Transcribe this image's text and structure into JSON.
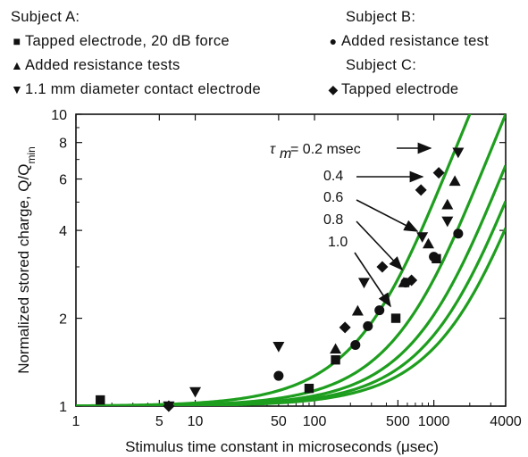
{
  "legend": {
    "subject_a": "Subject A:",
    "subject_b": "Subject B:",
    "subject_c": "Subject C:",
    "entries": [
      {
        "symbol": "square",
        "glyph": "■",
        "label": "Tapped electrode, 20 dB force"
      },
      {
        "symbol": "triangle-up",
        "glyph": "▲",
        "label": "Added resistance tests"
      },
      {
        "symbol": "triangle-down",
        "glyph": "▼",
        "label": "1.1 mm diameter contact electrode"
      },
      {
        "symbol": "circle",
        "glyph": "●",
        "label": "Added resistance test"
      },
      {
        "symbol": "diamond",
        "glyph": "◆",
        "label": "Tapped electrode"
      }
    ]
  },
  "chart_data": {
    "type": "scatter",
    "xlabel": "Stimulus time constant in microseconds (μsec)",
    "ylabel": "Normalized stored charge, Q/Q",
    "ylabel_sub": "min",
    "x_scale": "log",
    "y_scale": "log",
    "xlim": [
      1,
      4000
    ],
    "ylim": [
      1,
      10
    ],
    "x_ticks": [
      "1",
      "5",
      "10",
      "50",
      "100",
      "500",
      "1000",
      "4000"
    ],
    "y_ticks": [
      "1",
      "2",
      "4",
      "6",
      "8",
      "10"
    ],
    "curve_color": "#1e9e1e",
    "curves": [
      {
        "label": "τm = 0.2 msec",
        "tau_m_usec": 200
      },
      {
        "label": "0.4",
        "tau_m_usec": 400
      },
      {
        "label": "0.6",
        "tau_m_usec": 600
      },
      {
        "label": "0.8",
        "tau_m_usec": 800
      },
      {
        "label": "1.0",
        "tau_m_usec": 1000
      }
    ],
    "curve_prefix": "τ",
    "curve_prefix_sub": "m",
    "curve_first_label": "= 0.2 msec",
    "series": [
      {
        "symbol": "square",
        "points": [
          [
            1.6,
            1.05
          ],
          [
            90,
            1.15
          ],
          [
            150,
            1.44
          ],
          [
            480,
            2.0
          ],
          [
            1050,
            3.2
          ]
        ]
      },
      {
        "symbol": "triangle-up",
        "points": [
          [
            150,
            1.57
          ],
          [
            230,
            2.12
          ],
          [
            560,
            2.65
          ],
          [
            900,
            3.6
          ],
          [
            1300,
            4.9
          ],
          [
            1500,
            5.9
          ]
        ]
      },
      {
        "symbol": "triangle-down",
        "points": [
          [
            6,
            1.0
          ],
          [
            10,
            1.12
          ],
          [
            50,
            1.6
          ],
          [
            260,
            2.65
          ],
          [
            800,
            3.8
          ],
          [
            1300,
            4.3
          ],
          [
            1600,
            7.4
          ]
        ]
      },
      {
        "symbol": "circle",
        "points": [
          [
            50,
            1.27
          ],
          [
            220,
            1.62
          ],
          [
            280,
            1.88
          ],
          [
            350,
            2.13
          ],
          [
            580,
            2.65
          ],
          [
            1000,
            3.25
          ],
          [
            1600,
            3.9
          ]
        ]
      },
      {
        "symbol": "diamond",
        "points": [
          [
            6,
            1.0
          ],
          [
            180,
            1.86
          ],
          [
            370,
            3.0
          ],
          [
            650,
            2.7
          ],
          [
            780,
            5.5
          ],
          [
            1100,
            6.3
          ]
        ]
      }
    ]
  }
}
